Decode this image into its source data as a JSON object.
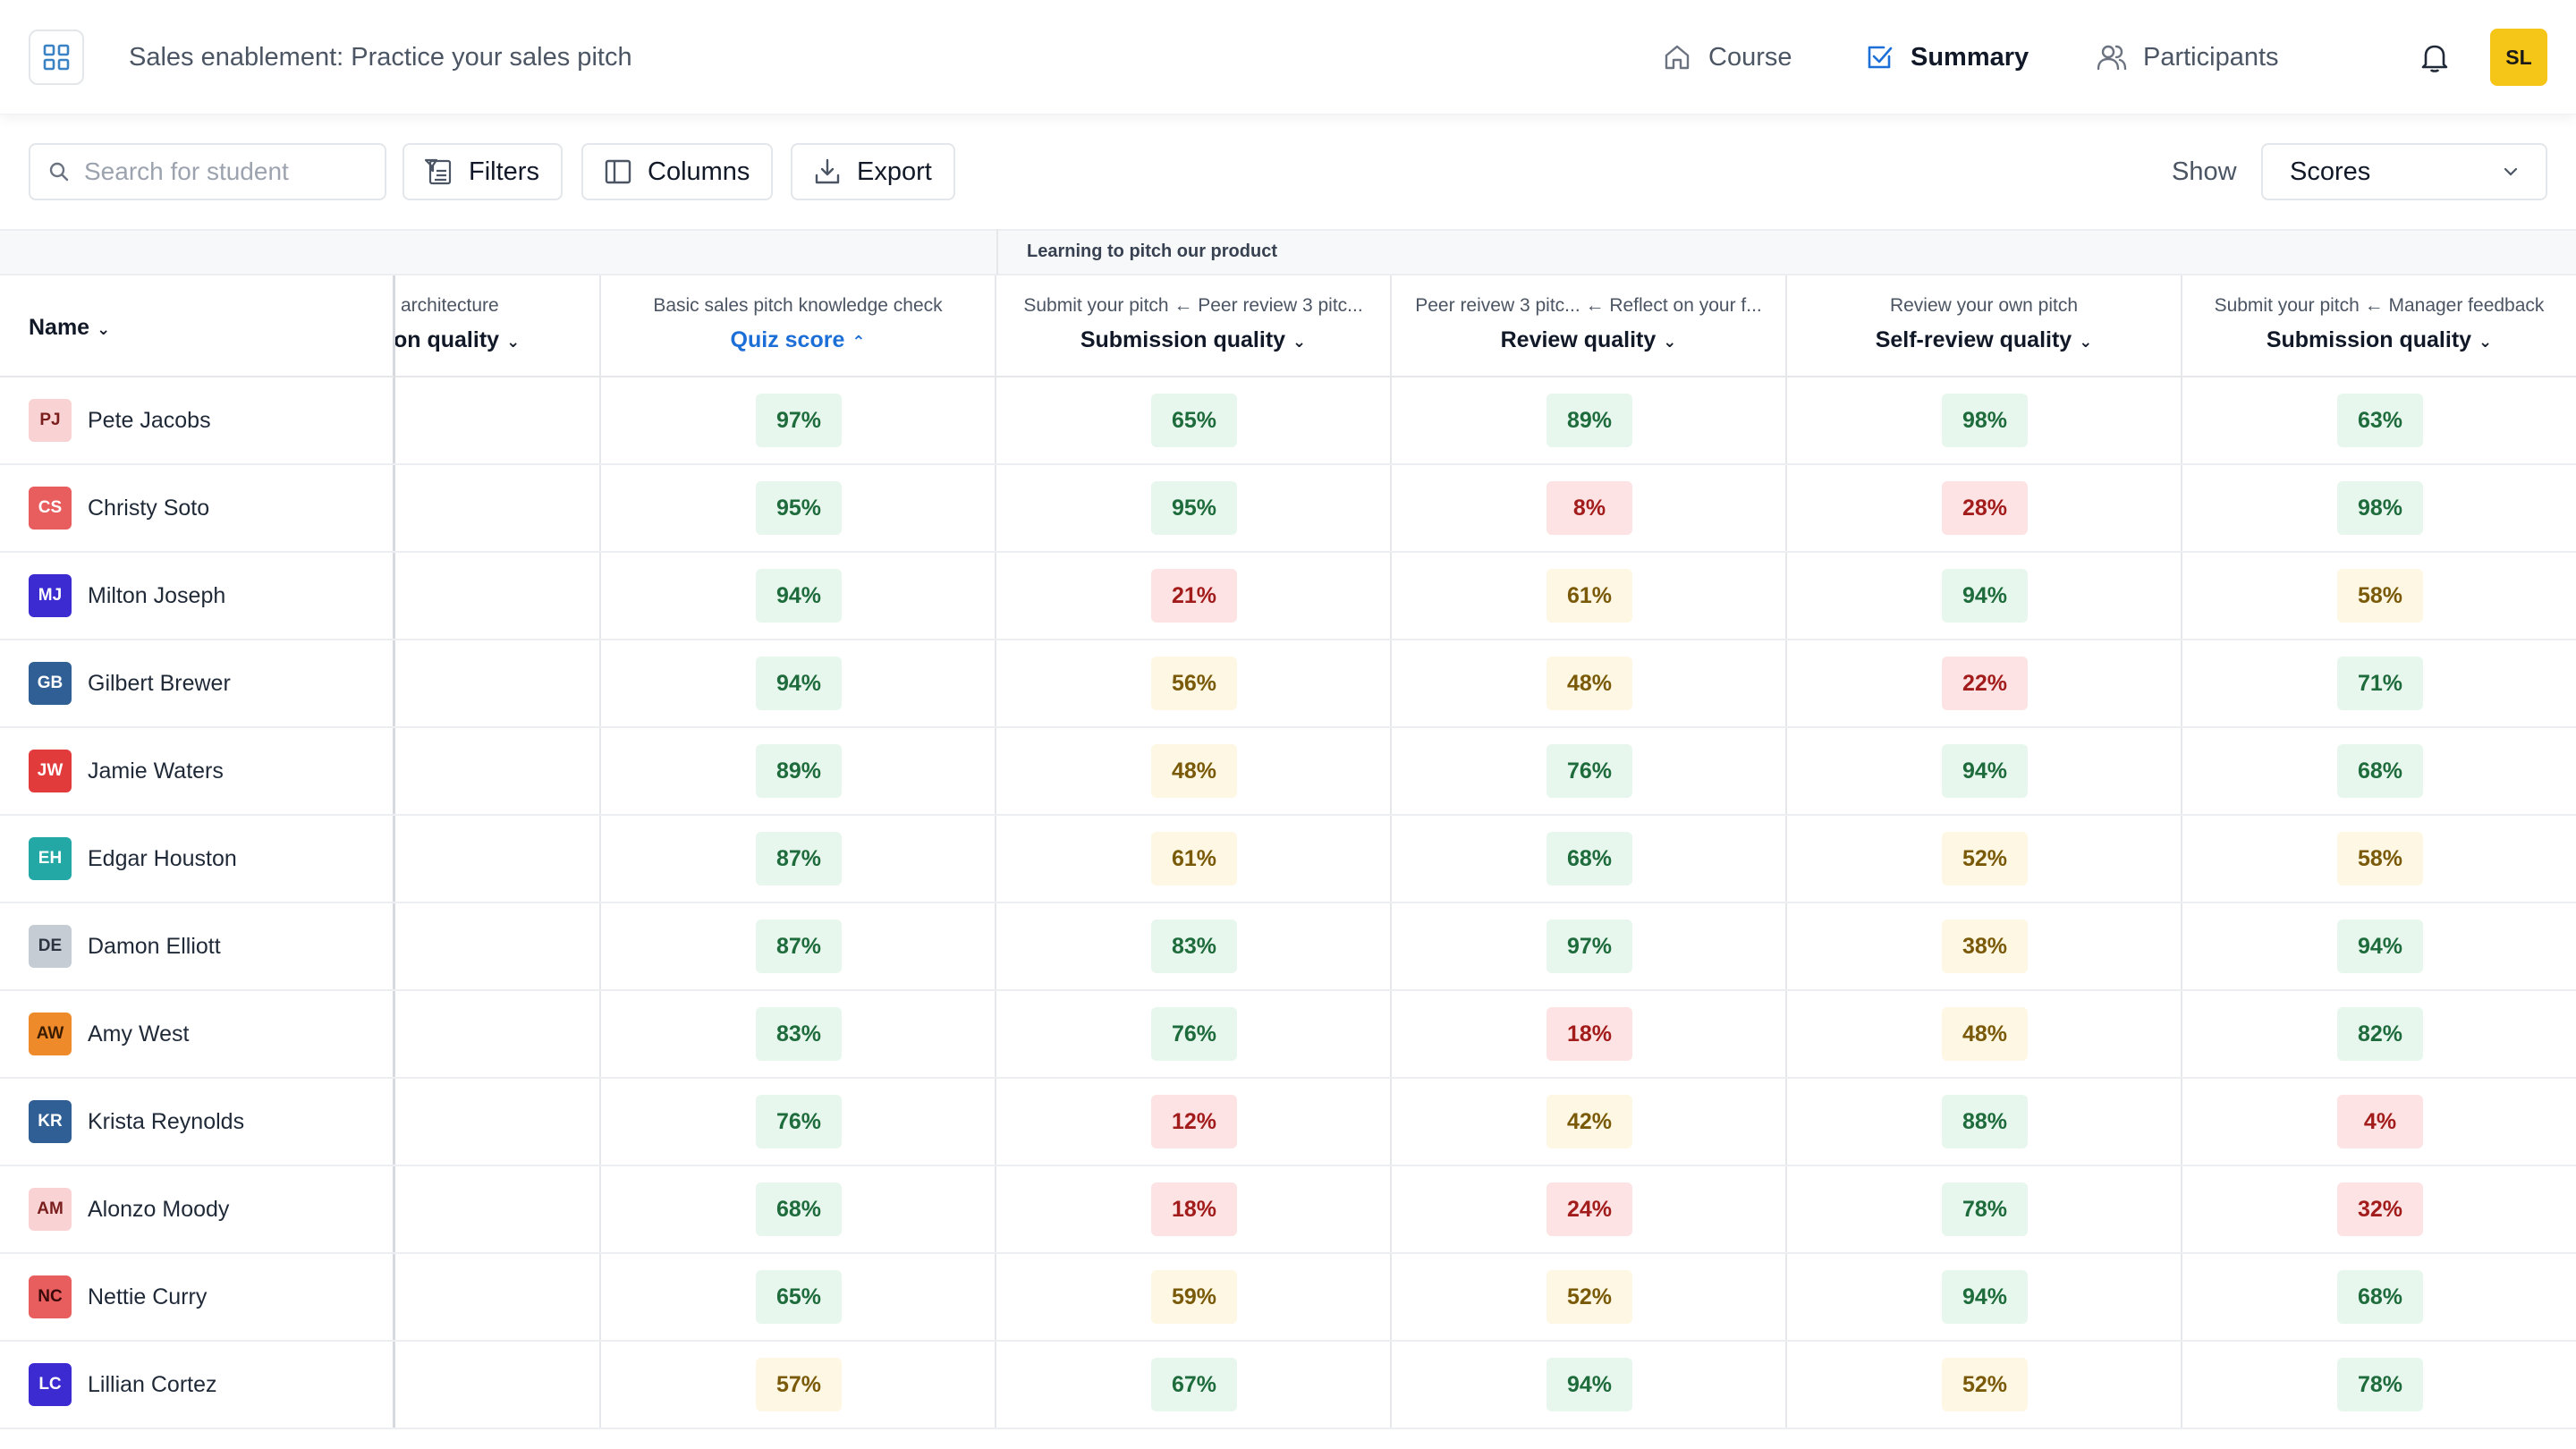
{
  "app": {
    "title": "Sales enablement: Practice your sales pitch",
    "avatar_initials": "SL"
  },
  "nav": [
    {
      "label": "Course",
      "icon": "home-icon",
      "active": false
    },
    {
      "label": "Summary",
      "icon": "checkbox-icon",
      "active": true
    },
    {
      "label": "Participants",
      "icon": "users-icon",
      "active": false
    }
  ],
  "toolbar": {
    "search_placeholder": "Search for student",
    "filters_label": "Filters",
    "columns_label": "Columns",
    "export_label": "Export",
    "show_label": "Show",
    "show_value": "Scores"
  },
  "table": {
    "group_label": "Learning to pitch our product",
    "name_header": "Name",
    "columns": [
      {
        "sub": "architecture",
        "main": "on quality",
        "sorted": false
      },
      {
        "sub": "Basic sales pitch knowledge check",
        "main": "Quiz score",
        "sorted": true
      },
      {
        "sub": "Submit your pitch ← Peer review 3 pitc...",
        "main": "Submission quality",
        "sorted": false
      },
      {
        "sub": "Peer reivew 3 pitc... ← Reflect on your f...",
        "main": "Review quality",
        "sorted": false
      },
      {
        "sub": "Review your own pitch",
        "main": "Self-review quality",
        "sorted": false
      },
      {
        "sub": "Submit your pitch ← Manager feedback",
        "main": "Submission quality",
        "sorted": false
      }
    ],
    "rows": [
      {
        "initials": "PJ",
        "name": "Pete Jacobs",
        "avatar_bg": "#f9d3d3",
        "avatar_fg": "#7a1d1d",
        "scores": [
          "97%",
          "65%",
          "89%",
          "98%",
          "63%"
        ]
      },
      {
        "initials": "CS",
        "name": "Christy Soto",
        "avatar_bg": "#e85d5d",
        "avatar_fg": "#ffffff",
        "scores": [
          "95%",
          "95%",
          "8%",
          "28%",
          "98%"
        ]
      },
      {
        "initials": "MJ",
        "name": "Milton Joseph",
        "avatar_bg": "#3b2bd1",
        "avatar_fg": "#ffffff",
        "scores": [
          "94%",
          "21%",
          "61%",
          "94%",
          "58%"
        ]
      },
      {
        "initials": "GB",
        "name": "Gilbert Brewer",
        "avatar_bg": "#2f5f94",
        "avatar_fg": "#ffffff",
        "scores": [
          "94%",
          "56%",
          "48%",
          "22%",
          "71%"
        ]
      },
      {
        "initials": "JW",
        "name": "Jamie Waters",
        "avatar_bg": "#e23b3b",
        "avatar_fg": "#ffffff",
        "scores": [
          "89%",
          "48%",
          "76%",
          "94%",
          "68%"
        ]
      },
      {
        "initials": "EH",
        "name": "Edgar Houston",
        "avatar_bg": "#23a8a5",
        "avatar_fg": "#ffffff",
        "scores": [
          "87%",
          "61%",
          "68%",
          "52%",
          "58%"
        ]
      },
      {
        "initials": "DE",
        "name": "Damon Elliott",
        "avatar_bg": "#c5ccd3",
        "avatar_fg": "#2b3440",
        "scores": [
          "87%",
          "83%",
          "97%",
          "38%",
          "94%"
        ]
      },
      {
        "initials": "AW",
        "name": "Amy West",
        "avatar_bg": "#ef8a2b",
        "avatar_fg": "#3a1c00",
        "scores": [
          "83%",
          "76%",
          "18%",
          "48%",
          "82%"
        ]
      },
      {
        "initials": "KR",
        "name": "Krista Reynolds",
        "avatar_bg": "#2f5f94",
        "avatar_fg": "#ffffff",
        "scores": [
          "76%",
          "12%",
          "42%",
          "88%",
          "4%"
        ]
      },
      {
        "initials": "AM",
        "name": "Alonzo Moody",
        "avatar_bg": "#f9d3d3",
        "avatar_fg": "#7a1d1d",
        "scores": [
          "68%",
          "18%",
          "24%",
          "78%",
          "32%"
        ]
      },
      {
        "initials": "NC",
        "name": "Nettie Curry",
        "avatar_bg": "#e85d5d",
        "avatar_fg": "#3a0a0a",
        "scores": [
          "65%",
          "59%",
          "52%",
          "94%",
          "68%"
        ]
      },
      {
        "initials": "LC",
        "name": "Lillian Cortez",
        "avatar_bg": "#3b2bd1",
        "avatar_fg": "#ffffff",
        "scores": [
          "57%",
          "67%",
          "94%",
          "52%",
          "78%"
        ]
      }
    ]
  }
}
